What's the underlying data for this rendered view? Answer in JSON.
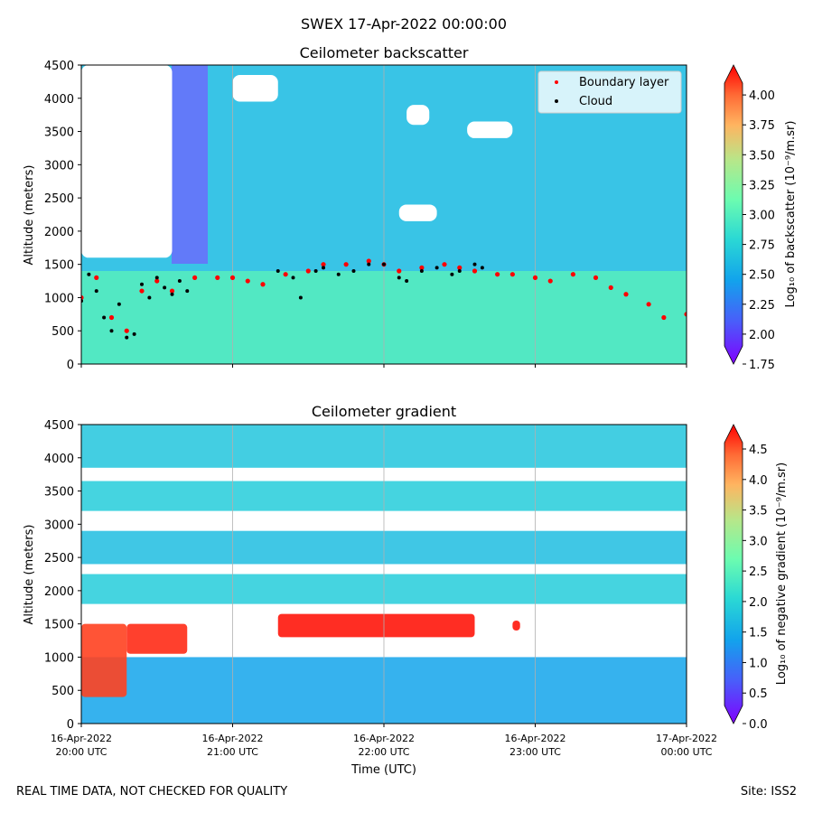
{
  "suptitle": "SWEX 17-Apr-2022 00:00:00",
  "footer_left": "REAL TIME DATA, NOT CHECKED FOR QUALITY",
  "footer_right": "Site: ISS2",
  "chart_data": [
    {
      "type": "heatmap",
      "title": "Ceilometer backscatter",
      "xlabel": "",
      "ylabel": "Altitude (meters)",
      "ylim": [
        0,
        4500
      ],
      "y_ticks": [
        0,
        500,
        1000,
        1500,
        2000,
        2500,
        3000,
        3500,
        4000,
        4500
      ],
      "x_tick_labels": [],
      "xlim_hours": [
        20,
        24
      ],
      "grid": "vertical",
      "colormap": "rainbow",
      "colorbar": {
        "label": "Log₁₀ of backscatter (10⁻⁹/m.sr)",
        "range": [
          1.75,
          4.25
        ],
        "ticks": [
          "1.75",
          "2.00",
          "2.25",
          "2.50",
          "2.75",
          "3.00",
          "3.25",
          "3.50",
          "3.75",
          "4.00"
        ],
        "tick_values": [
          1.75,
          2.0,
          2.25,
          2.5,
          2.75,
          3.0,
          3.25,
          3.5,
          3.75,
          4.0
        ]
      },
      "legend": {
        "placement": "top-right",
        "entries": [
          {
            "label": "Boundary layer",
            "color": "#ff0000",
            "marker": "dot"
          },
          {
            "label": "Cloud",
            "color": "#000000",
            "marker": "dot"
          }
        ]
      },
      "series": [
        {
          "name": "Boundary layer",
          "color": "#ff0000",
          "x_hours": [
            20.0,
            20.1,
            20.2,
            20.3,
            20.4,
            20.5,
            20.6,
            20.75,
            20.9,
            21.0,
            21.1,
            21.2,
            21.35,
            21.5,
            21.6,
            21.75,
            21.9,
            22.0,
            22.1,
            22.25,
            22.4,
            22.5,
            22.6,
            22.75,
            22.85,
            23.0,
            23.1,
            23.25,
            23.4,
            23.5,
            23.6,
            23.75,
            23.85,
            24.0
          ],
          "y_m": [
            1000,
            1300,
            700,
            500,
            1100,
            1250,
            1100,
            1300,
            1300,
            1300,
            1250,
            1200,
            1350,
            1400,
            1500,
            1500,
            1550,
            1500,
            1400,
            1450,
            1500,
            1450,
            1400,
            1350,
            1350,
            1300,
            1250,
            1350,
            1300,
            1150,
            1050,
            900,
            700,
            750
          ]
        },
        {
          "name": "Cloud",
          "color": "#000000",
          "x_hours": [
            20.0,
            20.05,
            20.1,
            20.15,
            20.2,
            20.25,
            20.3,
            20.35,
            20.4,
            20.45,
            20.5,
            20.55,
            20.6,
            20.65,
            20.7,
            21.3,
            21.4,
            21.45,
            21.55,
            21.6,
            21.7,
            21.8,
            21.9,
            22.0,
            22.1,
            22.15,
            22.25,
            22.35,
            22.45,
            22.5,
            22.6,
            22.65
          ],
          "y_m": [
            950,
            1350,
            1100,
            700,
            500,
            900,
            400,
            450,
            1200,
            1000,
            1300,
            1150,
            1050,
            1250,
            1100,
            1400,
            1300,
            1000,
            1400,
            1450,
            1350,
            1400,
            1500,
            1500,
            1300,
            1250,
            1400,
            1450,
            1350,
            1400,
            1500,
            1450
          ]
        }
      ],
      "blank_regions": [
        {
          "x_hours": [
            20.0,
            20.6
          ],
          "y_m": [
            1600,
            4500
          ]
        },
        {
          "x_hours": [
            21.0,
            21.3
          ],
          "y_m": [
            3950,
            4350
          ]
        },
        {
          "x_hours": [
            22.15,
            22.3
          ],
          "y_m": [
            3600,
            3900
          ]
        },
        {
          "x_hours": [
            22.55,
            22.85
          ],
          "y_m": [
            3400,
            3650
          ]
        },
        {
          "x_hours": [
            22.1,
            22.35
          ],
          "y_m": [
            2150,
            2400
          ]
        }
      ]
    },
    {
      "type": "heatmap",
      "title": "Ceilometer gradient",
      "xlabel": "Time (UTC)",
      "ylabel": "Altitude (meters)",
      "ylim": [
        0,
        4500
      ],
      "y_ticks": [
        0,
        500,
        1000,
        1500,
        2000,
        2500,
        3000,
        3500,
        4000,
        4500
      ],
      "x_ticks_hours": [
        20,
        21,
        22,
        23,
        24
      ],
      "x_tick_labels": [
        [
          "16-Apr-2022",
          "20:00 UTC"
        ],
        [
          "16-Apr-2022",
          "21:00 UTC"
        ],
        [
          "16-Apr-2022",
          "22:00 UTC"
        ],
        [
          "16-Apr-2022",
          "23:00 UTC"
        ],
        [
          "17-Apr-2022",
          "00:00 UTC"
        ]
      ],
      "xlim_hours": [
        20,
        24
      ],
      "grid": "vertical",
      "colormap": "rainbow",
      "colorbar": {
        "label": "Log₁₀ of negative gradient (10⁻⁹/m.sr)",
        "range": [
          0.0,
          4.9
        ],
        "ticks": [
          "0.0",
          "0.5",
          "1.0",
          "1.5",
          "2.0",
          "2.5",
          "3.0",
          "3.5",
          "4.0",
          "4.5"
        ],
        "tick_values": [
          0.0,
          0.5,
          1.0,
          1.5,
          2.0,
          2.5,
          3.0,
          3.5,
          4.0,
          4.5
        ]
      },
      "bands": [
        {
          "y_m": [
            3850,
            4500
          ],
          "level": 1.8
        },
        {
          "y_m": [
            3200,
            3650
          ],
          "level": 1.9
        },
        {
          "y_m": [
            2400,
            2900
          ],
          "level": 1.7
        },
        {
          "y_m": [
            1800,
            2250
          ],
          "level": 1.9
        },
        {
          "y_m": [
            0,
            1000
          ],
          "level": 1.4
        }
      ],
      "high_regions": [
        {
          "x_hours": [
            20.0,
            20.3
          ],
          "y_m": [
            400,
            1500
          ],
          "level": 4.6
        },
        {
          "x_hours": [
            20.3,
            20.7
          ],
          "y_m": [
            1050,
            1500
          ],
          "level": 4.7
        },
        {
          "x_hours": [
            21.3,
            22.6
          ],
          "y_m": [
            1300,
            1650
          ],
          "level": 4.8
        },
        {
          "x_hours": [
            22.85,
            22.9
          ],
          "y_m": [
            1400,
            1550
          ],
          "level": 4.8
        }
      ]
    }
  ]
}
